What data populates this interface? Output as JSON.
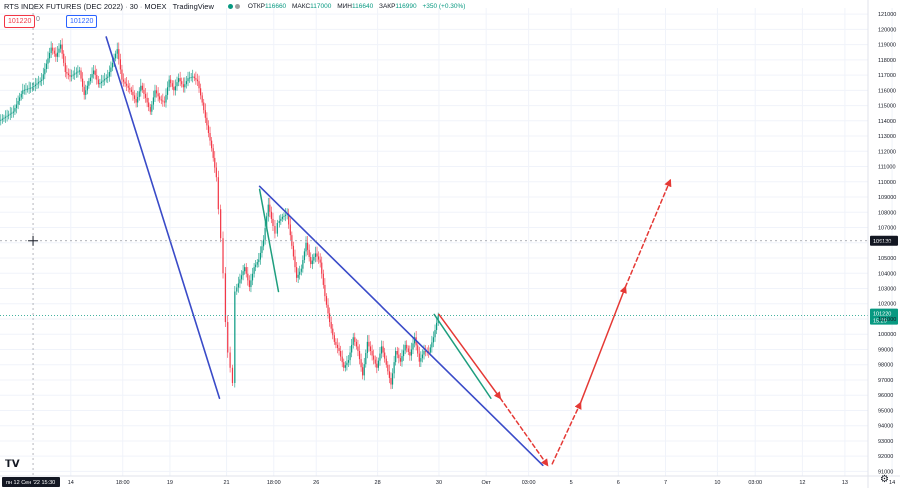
{
  "header": {
    "symbol": "RTS INDEX FUTURES (DEC 2022)",
    "interval": "30",
    "exchange": "MOEX",
    "source": "TradingView",
    "open_label": "ОТКР",
    "open_value": "116660",
    "high_label": "МАКС",
    "high_value": "117000",
    "low_label": "МИН",
    "low_value": "116640",
    "close_label": "ЗАКР",
    "close_value": "116990",
    "change": "+350 (+0.30%)"
  },
  "price_boxes": {
    "sell": "101220",
    "zero": "0",
    "buy": "101220"
  },
  "crosshair": {
    "price_label": "106130",
    "time_label": "пн 12 Сен '22  15:30"
  },
  "last_price": {
    "value": "101220",
    "countdown": "15:29"
  },
  "colors": {
    "up": "#089981",
    "down": "#f23645",
    "wedge": "#3a4bc8",
    "teal": "#1e9e7e",
    "red_arrow": "#e53935"
  },
  "chart_data": {
    "type": "line",
    "title": "",
    "y_ticks": [
      121000,
      120000,
      119000,
      118000,
      117000,
      116000,
      115000,
      114000,
      113000,
      112000,
      111000,
      110000,
      109000,
      108000,
      107000,
      106000,
      105000,
      104000,
      103000,
      102000,
      101000,
      100000,
      99000,
      98000,
      97000,
      96000,
      95000,
      94000,
      93000,
      92000,
      91000
    ],
    "ylim": [
      90700,
      121400
    ],
    "x_ticks": [
      {
        "label": "14",
        "t": 0.15
      },
      {
        "label": "18:00",
        "t": 0.26
      },
      {
        "label": "19",
        "t": 0.36
      },
      {
        "label": "21",
        "t": 0.48
      },
      {
        "label": "18:00",
        "t": 0.58
      },
      {
        "label": "26",
        "t": 0.67
      },
      {
        "label": "28",
        "t": 0.8
      },
      {
        "label": "30",
        "t": 0.93
      },
      {
        "label": "Окт",
        "t": 1.03
      },
      {
        "label": "03:00",
        "t": 1.12
      },
      {
        "label": "5",
        "t": 1.21
      },
      {
        "label": "6",
        "t": 1.31
      },
      {
        "label": "7",
        "t": 1.41
      },
      {
        "label": "10",
        "t": 1.52
      },
      {
        "label": "03:00",
        "t": 1.6
      },
      {
        "label": "12",
        "t": 1.7
      },
      {
        "label": "13",
        "t": 1.79
      },
      {
        "label": "14",
        "t": 1.89
      }
    ],
    "series": [
      {
        "values": [
          [
            0.0,
            114000
          ],
          [
            0.03,
            114600
          ],
          [
            0.05,
            116000
          ],
          [
            0.07,
            116200
          ],
          [
            0.09,
            116700
          ],
          [
            0.11,
            118800
          ],
          [
            0.12,
            118200
          ],
          [
            0.13,
            119000
          ],
          [
            0.14,
            117200
          ],
          [
            0.15,
            116900
          ],
          [
            0.17,
            117300
          ],
          [
            0.18,
            115700
          ],
          [
            0.19,
            116600
          ],
          [
            0.2,
            117300
          ],
          [
            0.21,
            116400
          ],
          [
            0.23,
            116900
          ],
          [
            0.24,
            117800
          ],
          [
            0.25,
            118700
          ],
          [
            0.26,
            116700
          ],
          [
            0.28,
            115900
          ],
          [
            0.29,
            115200
          ],
          [
            0.3,
            116300
          ],
          [
            0.31,
            115500
          ],
          [
            0.32,
            114600
          ],
          [
            0.33,
            116000
          ],
          [
            0.34,
            115400
          ],
          [
            0.35,
            115200
          ],
          [
            0.36,
            116700
          ],
          [
            0.37,
            116000
          ],
          [
            0.38,
            116800
          ],
          [
            0.39,
            116200
          ],
          [
            0.4,
            116800
          ],
          [
            0.41,
            116900
          ],
          [
            0.42,
            116600
          ],
          [
            0.43,
            115200
          ],
          [
            0.44,
            113700
          ],
          [
            0.45,
            112200
          ],
          [
            0.46,
            110300
          ],
          [
            0.465,
            108200
          ],
          [
            0.47,
            106300
          ],
          [
            0.475,
            104000
          ],
          [
            0.48,
            100800
          ],
          [
            0.485,
            98800
          ],
          [
            0.49,
            97800
          ],
          [
            0.495,
            96800
          ],
          [
            0.5,
            102800
          ],
          [
            0.51,
            103600
          ],
          [
            0.52,
            104400
          ],
          [
            0.53,
            103100
          ],
          [
            0.54,
            104400
          ],
          [
            0.55,
            104900
          ],
          [
            0.56,
            106200
          ],
          [
            0.57,
            108500
          ],
          [
            0.58,
            107100
          ],
          [
            0.585,
            106600
          ],
          [
            0.59,
            107300
          ],
          [
            0.6,
            107700
          ],
          [
            0.61,
            107900
          ],
          [
            0.62,
            105800
          ],
          [
            0.63,
            103700
          ],
          [
            0.64,
            104300
          ],
          [
            0.65,
            106000
          ],
          [
            0.66,
            104600
          ],
          [
            0.67,
            105300
          ],
          [
            0.68,
            104700
          ],
          [
            0.69,
            102500
          ],
          [
            0.7,
            100800
          ],
          [
            0.71,
            99500
          ],
          [
            0.72,
            98900
          ],
          [
            0.73,
            97800
          ],
          [
            0.74,
            98300
          ],
          [
            0.75,
            99800
          ],
          [
            0.76,
            98900
          ],
          [
            0.77,
            97300
          ],
          [
            0.78,
            99500
          ],
          [
            0.79,
            98600
          ],
          [
            0.8,
            97800
          ],
          [
            0.81,
            99200
          ],
          [
            0.82,
            98000
          ],
          [
            0.83,
            96700
          ],
          [
            0.84,
            98900
          ],
          [
            0.85,
            98200
          ],
          [
            0.86,
            99300
          ],
          [
            0.87,
            98600
          ],
          [
            0.88,
            99800
          ],
          [
            0.89,
            98200
          ],
          [
            0.9,
            98900
          ],
          [
            0.91,
            98800
          ],
          [
            0.92,
            99800
          ],
          [
            0.93,
            101220
          ]
        ]
      }
    ],
    "drawings": [
      {
        "kind": "trendline",
        "color": "wedge",
        "from": [
          0.225,
          119500
        ],
        "to": [
          0.465,
          95800
        ]
      },
      {
        "kind": "trendline",
        "color": "wedge",
        "from": [
          0.55,
          109700
        ],
        "to": [
          1.15,
          91400
        ]
      },
      {
        "kind": "trendline",
        "color": "teal",
        "from": [
          0.55,
          109500
        ],
        "to": [
          0.59,
          102800
        ]
      },
      {
        "kind": "trendline",
        "color": "teal",
        "from": [
          0.92,
          101300
        ],
        "to": [
          1.04,
          95800
        ]
      },
      {
        "kind": "arrow",
        "color": "red_arrow",
        "from": [
          0.93,
          101300
        ],
        "to": [
          1.06,
          95800
        ],
        "dashed": false
      },
      {
        "kind": "arrow",
        "color": "red_arrow",
        "from": [
          1.06,
          95800
        ],
        "to": [
          1.16,
          91400
        ],
        "dashed": true
      },
      {
        "kind": "arrow",
        "color": "red_arrow",
        "from": [
          1.17,
          91500
        ],
        "to": [
          1.23,
          95500
        ],
        "dashed": true
      },
      {
        "kind": "arrow",
        "color": "red_arrow",
        "from": [
          1.23,
          95500
        ],
        "to": [
          1.325,
          103100
        ],
        "dashed": false
      },
      {
        "kind": "arrow",
        "color": "red_arrow",
        "from": [
          1.325,
          103100
        ],
        "to": [
          1.42,
          110100
        ],
        "dashed": true
      }
    ],
    "crosshair": {
      "t": 0.07,
      "y": 106130
    }
  }
}
